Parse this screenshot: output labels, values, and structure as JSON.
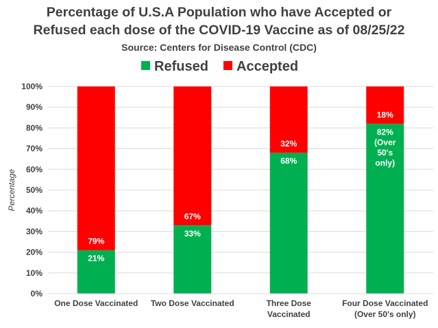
{
  "chart_data": {
    "type": "bar",
    "stacked": true,
    "title_lines": [
      "Percentage of U.S.A Population who have Accepted or",
      "Refused each dose of the COVID-19 Vaccine as of 08/25/22"
    ],
    "subtitle": "Source: Centers for Disease Control (CDC)",
    "xlabel": "",
    "ylabel": "Percentage",
    "ylim": [
      0,
      100
    ],
    "yticks": [
      0,
      10,
      20,
      30,
      40,
      50,
      60,
      70,
      80,
      90,
      100
    ],
    "ytick_labels": [
      "0%",
      "10%",
      "20%",
      "30%",
      "40%",
      "50%",
      "60%",
      "70%",
      "80%",
      "90%",
      "100%"
    ],
    "legend_position": "top",
    "categories": [
      [
        "One Dose Vaccinated"
      ],
      [
        "Two Dose Vaccinated"
      ],
      [
        "Three Dose",
        "Vaccinated"
      ],
      [
        "Four Dose Vaccinated",
        "(Over 50's only)"
      ]
    ],
    "series": [
      {
        "name": "Refused",
        "color": "#00b050",
        "values": [
          21,
          33,
          68,
          82
        ],
        "labels": [
          [
            "21%"
          ],
          [
            "33%"
          ],
          [
            "68%"
          ],
          [
            "82%",
            "(Over",
            "50's",
            "only)"
          ]
        ]
      },
      {
        "name": "Accepted",
        "color": "#ff0000",
        "values": [
          79,
          67,
          32,
          18
        ],
        "labels": [
          [
            "79%"
          ],
          [
            "67%"
          ],
          [
            "32%"
          ],
          [
            "18%"
          ]
        ]
      }
    ]
  }
}
